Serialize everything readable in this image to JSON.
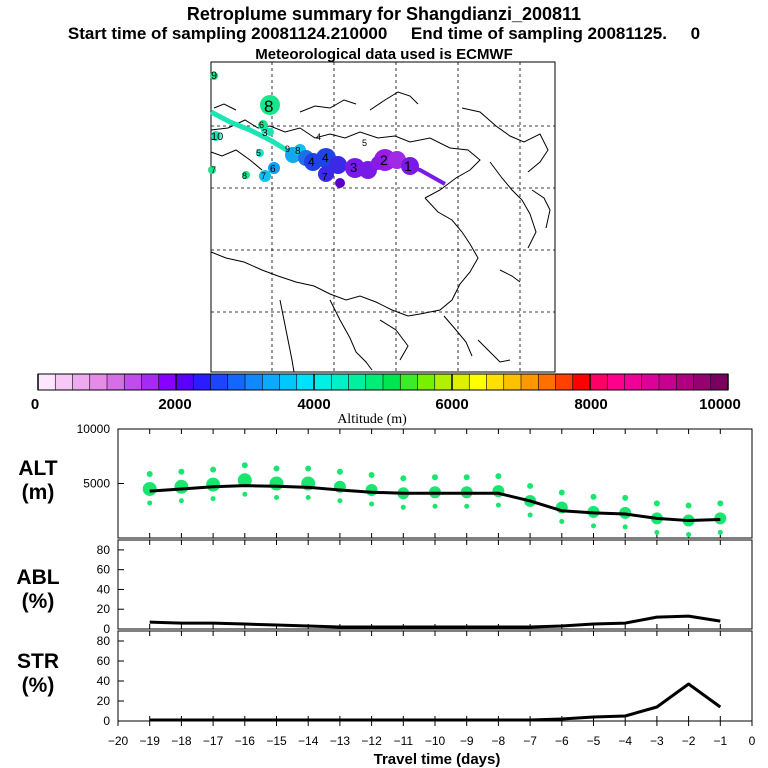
{
  "header": {
    "title": "Retroplume summary for Shangdianzi_200811",
    "sampling": "Start time of sampling 20081124.210000     End time of sampling 20081125.     0",
    "met": "Meteorological data used is ECMWF"
  },
  "colorbar": {
    "label": "Altitude (m)",
    "ticks": [
      "0",
      "2000",
      "4000",
      "6000",
      "8000",
      "10000"
    ],
    "colors": [
      "#ffe6ff",
      "#f5c8f5",
      "#eeaaee",
      "#e68ce6",
      "#d66ee6",
      "#c24bf0",
      "#a52af5",
      "#8800ff",
      "#5a00ff",
      "#2a1cff",
      "#1d44ff",
      "#1566ff",
      "#1088ff",
      "#0aaaff",
      "#00c8ff",
      "#00e0ff",
      "#00f0e6",
      "#00f0c8",
      "#00f0a0",
      "#00ee78",
      "#00e650",
      "#3cec28",
      "#78f000",
      "#b0f000",
      "#dcf000",
      "#ffff00",
      "#ffe000",
      "#ffc000",
      "#ff9800",
      "#ff7000",
      "#ff4000",
      "#ff0000",
      "#ff0066",
      "#ff008c",
      "#ee0099",
      "#dd0099",
      "#c80090",
      "#b00080",
      "#960070",
      "#7a0060"
    ]
  },
  "map": {
    "plume_labels": [
      "9",
      "8",
      "6",
      "10",
      "3",
      "5",
      "8",
      "4",
      "5",
      "4",
      "7",
      "6",
      "4",
      "3",
      "2",
      "1",
      "8",
      "7",
      "7",
      "9"
    ],
    "colors": {
      "plume_green": "#19e68c",
      "plume_blue": "#1e6ee6",
      "plume_purple": "#7a1ae6",
      "plume_deep": "#5a00c8"
    }
  },
  "chart_data": [
    {
      "type": "line",
      "panel": "ALT",
      "ylabel": "ALT\n(m)",
      "yticks": [
        "10000",
        "5000"
      ],
      "ylim": [
        0,
        10000
      ],
      "x": [
        -19,
        -18,
        -17,
        -16,
        -15,
        -14,
        -13,
        -12,
        -11,
        -10,
        -9,
        -8,
        -7,
        -6,
        -5,
        -4,
        -3,
        -2,
        -1
      ],
      "series": [
        {
          "name": "mean altitude",
          "values": [
            4300,
            4500,
            4700,
            4800,
            4750,
            4650,
            4400,
            4200,
            4100,
            4100,
            4100,
            4100,
            3400,
            2500,
            2300,
            2200,
            1800,
            1600,
            1700
          ]
        },
        {
          "name": "particle clusters",
          "values": [
            4500,
            4700,
            4900,
            5300,
            5000,
            5000,
            4700,
            4400,
            4100,
            4200,
            4200,
            4300,
            3400,
            2800,
            2400,
            2300,
            1800,
            1600,
            1800
          ]
        }
      ],
      "color": "#19e66e"
    },
    {
      "type": "line",
      "panel": "ABL",
      "ylabel": "ABL\n(%)",
      "yticks": [
        "80",
        "60",
        "40",
        "20",
        "0"
      ],
      "ylim": [
        0,
        90
      ],
      "x": [
        -19,
        -18,
        -17,
        -16,
        -15,
        -14,
        -13,
        -12,
        -11,
        -10,
        -9,
        -8,
        -7,
        -6,
        -5,
        -4,
        -3,
        -2,
        -1
      ],
      "series": [
        {
          "name": "ABL fraction",
          "values": [
            7,
            6,
            6,
            5,
            4,
            3,
            2,
            2,
            2,
            2,
            2,
            2,
            2,
            3,
            5,
            6,
            12,
            13,
            8
          ]
        }
      ]
    },
    {
      "type": "line",
      "panel": "STR",
      "ylabel": "STR\n(%)",
      "yticks": [
        "80",
        "60",
        "40",
        "20",
        "0"
      ],
      "ylim": [
        0,
        90
      ],
      "x": [
        -19,
        -18,
        -17,
        -16,
        -15,
        -14,
        -13,
        -12,
        -11,
        -10,
        -9,
        -8,
        -7,
        -6,
        -5,
        -4,
        -3,
        -2,
        -1
      ],
      "series": [
        {
          "name": "STR fraction",
          "values": [
            1,
            1,
            1,
            1,
            1,
            1,
            1,
            1,
            1,
            1,
            1,
            1,
            1,
            2,
            4,
            5,
            14,
            37,
            14
          ]
        }
      ]
    }
  ],
  "xaxis": {
    "ticks": [
      "−20",
      "−19",
      "−18",
      "−17",
      "−16",
      "−15",
      "−14",
      "−13",
      "−12",
      "−11",
      "−10",
      "−9",
      "−8",
      "−7",
      "−6",
      "−5",
      "−4",
      "−3",
      "−2",
      "−1",
      "0"
    ],
    "label": "Travel time (days)"
  }
}
